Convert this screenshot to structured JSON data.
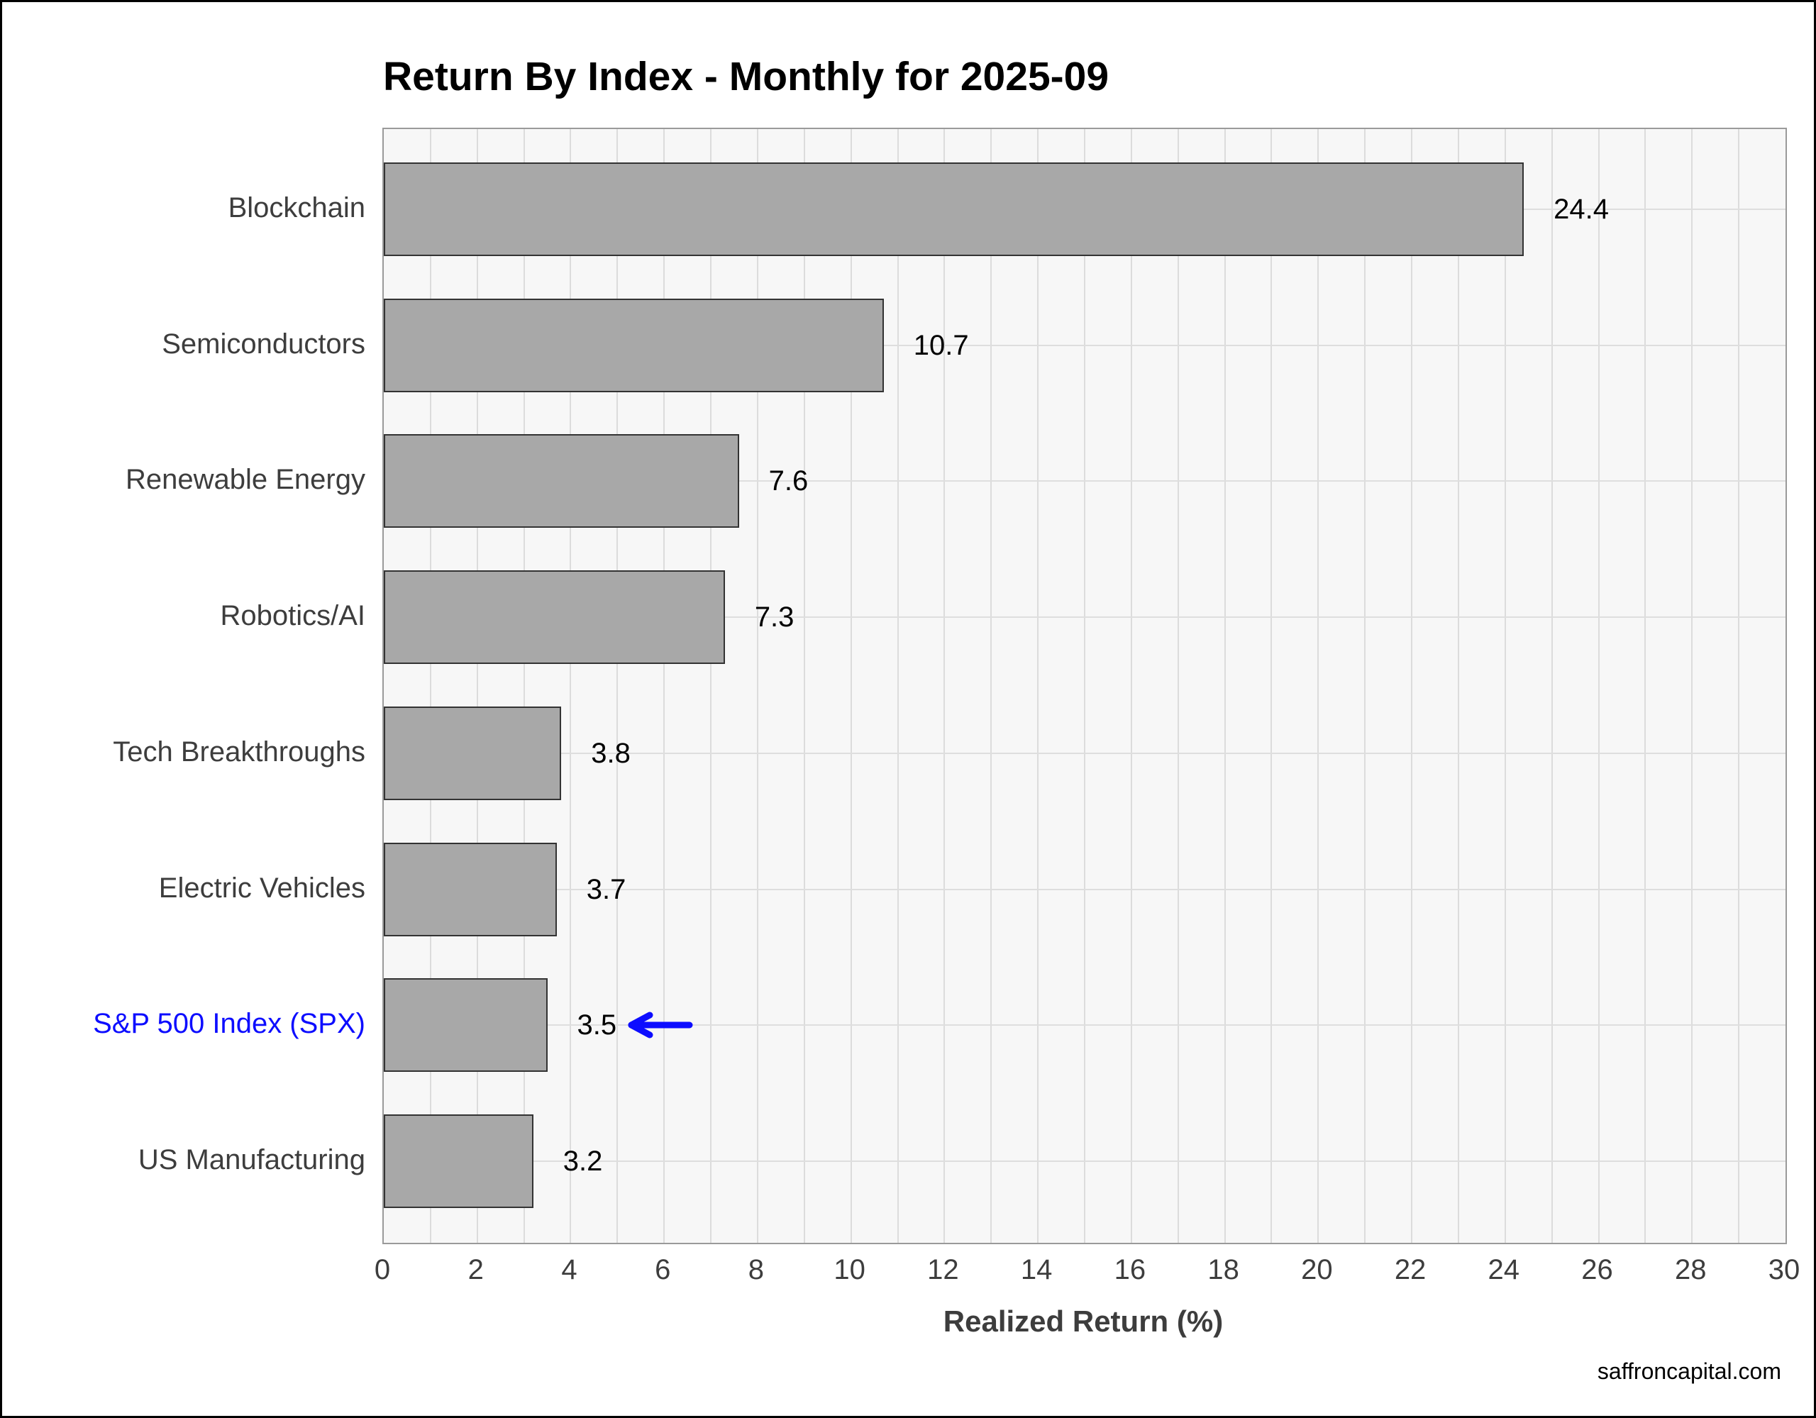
{
  "title": "Return By Index - Monthly for 2025-09",
  "watermark": "saffroncapital.com",
  "chart_data": {
    "type": "bar",
    "orientation": "horizontal",
    "title": "Return By Index - Monthly for 2025-09",
    "categories": [
      "Blockchain",
      "Semiconductors",
      "Renewable Energy",
      "Robotics/AI",
      "Tech Breakthroughs",
      "Electric Vehicles",
      "S&P 500 Index (SPX)",
      "US Manufacturing"
    ],
    "values": [
      24.4,
      10.7,
      7.6,
      7.3,
      3.8,
      3.7,
      3.5,
      3.2
    ],
    "value_labels": [
      "24.4",
      "10.7",
      "7.6",
      "7.3",
      "3.8",
      "3.7",
      "3.5",
      "3.2"
    ],
    "xlabel": "Realized Return (%)",
    "ylabel": "",
    "xlim": [
      0,
      30
    ],
    "xticks": [
      0,
      2,
      4,
      6,
      8,
      10,
      12,
      14,
      16,
      18,
      20,
      22,
      24,
      26,
      28,
      30
    ],
    "grid": true,
    "grid_step": 1,
    "legend": false,
    "plot_bg_color": "#f7f7f7",
    "grid_color": "#dcdcdc",
    "bar_color": "#a8a8a8",
    "bar_border_color": "#333333",
    "label_color": "#3d3d3d",
    "highlight_index": 6,
    "highlight_color": "#0d0dff",
    "highlight_marker": "left-arrow"
  }
}
